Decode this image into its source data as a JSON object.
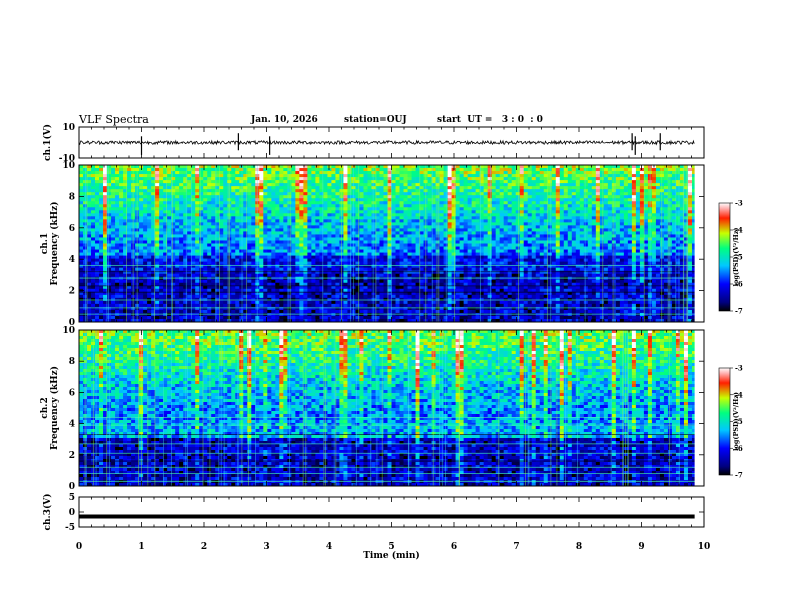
{
  "header": {
    "title": "VLF Spectra",
    "date": "Jan. 10, 2026",
    "station": "station=OUJ",
    "start": "start  UT =   3 : 0  : 0"
  },
  "chart_data": [
    {
      "type": "line",
      "name": "ch1-waveform",
      "ylabel": "ch.1(V)",
      "ylim": [
        -10,
        10
      ],
      "yticks": [
        "10",
        "-10"
      ],
      "description_values": {
        "baseline": 0,
        "typical_amplitude": 1.5,
        "spike_times_min": [
          1.0,
          2.55,
          3.05,
          8.85,
          8.9,
          9.3
        ]
      }
    },
    {
      "type": "heatmap",
      "name": "ch1-spectrogram",
      "ylabel": "ch.1\nFrequency (kHz)",
      "ylim": [
        0,
        10
      ],
      "yticks": [
        "0",
        "2",
        "4",
        "6",
        "8",
        "10"
      ],
      "xlim": [
        0,
        10
      ],
      "colorbar": {
        "label": "log(PSD)(V²/Hz)",
        "range": [
          -7,
          -3
        ],
        "ticks": [
          "-3",
          "-4",
          "-5",
          "-6",
          "-7"
        ]
      }
    },
    {
      "type": "heatmap",
      "name": "ch2-spectrogram",
      "ylabel": "ch.2\nFrequency (kHz)",
      "ylim": [
        0,
        10
      ],
      "yticks": [
        "0",
        "2",
        "4",
        "6",
        "8",
        "10"
      ],
      "xlim": [
        0,
        10
      ],
      "colorbar": {
        "label": "log(PSD)(V²/Hz)",
        "range": [
          -7,
          -3
        ],
        "ticks": [
          "-3",
          "-4",
          "-5",
          "-6",
          "-7"
        ]
      }
    },
    {
      "type": "line",
      "name": "ch3-waveform",
      "ylabel": "ch.3(V)",
      "ylim": [
        -5,
        5
      ],
      "yticks": [
        "5",
        "0",
        "-5"
      ],
      "description_values": {
        "level": -1.5
      }
    }
  ],
  "xaxis": {
    "label": "Time  (min)",
    "ticks": [
      "0",
      "1",
      "2",
      "3",
      "4",
      "5",
      "6",
      "7",
      "8",
      "9",
      "10"
    ],
    "xlim": [
      0,
      10
    ]
  },
  "colors": {
    "frame": "#000000",
    "waveform": "#000000"
  }
}
